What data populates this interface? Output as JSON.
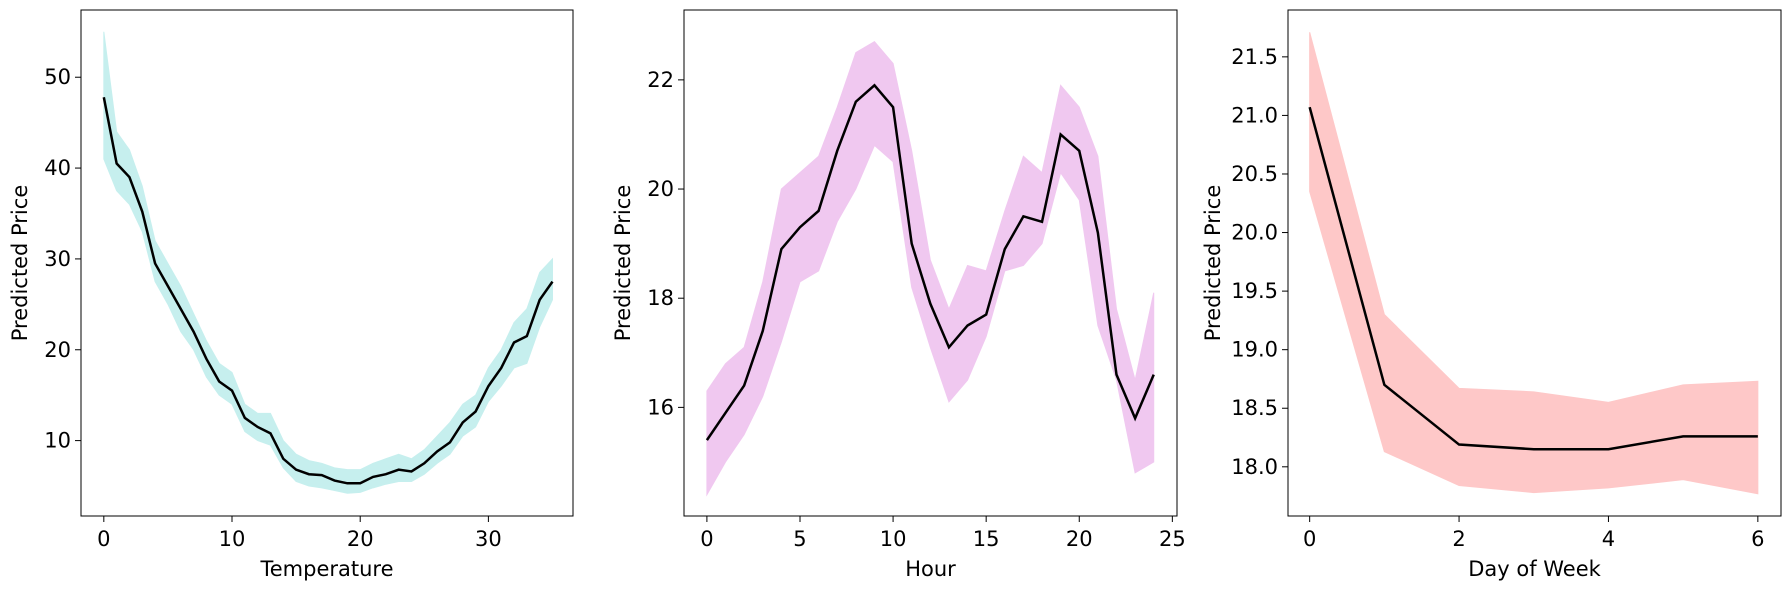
{
  "chart_data": [
    {
      "type": "line",
      "xlabel": "Temperature",
      "ylabel": "Predicted Price",
      "x": [
        0,
        1,
        2,
        3,
        4,
        5,
        6,
        7,
        8,
        9,
        10,
        11,
        12,
        13,
        14,
        15,
        16,
        17,
        18,
        19,
        20,
        21,
        22,
        23,
        24,
        25,
        26,
        27,
        28,
        29,
        30,
        31,
        32,
        33,
        34,
        35
      ],
      "series": [
        {
          "color": "#000000",
          "values": [
            47.8,
            40.5,
            39,
            35.2,
            29.5,
            27,
            24.5,
            22,
            19,
            16.5,
            15.5,
            12.5,
            11.5,
            10.8,
            8,
            6.8,
            6.3,
            6.2,
            5.6,
            5.3,
            5.3,
            6,
            6.3,
            6.8,
            6.6,
            7.5,
            8.8,
            9.8,
            12,
            13.2,
            16,
            18,
            20.8,
            21.5,
            25.5,
            27.5
          ]
        }
      ],
      "band": {
        "color": "#c6efee",
        "lower": [
          41,
          37.5,
          36,
          33,
          27.5,
          25,
          22,
          20,
          17,
          15,
          14,
          11,
          10,
          9.5,
          7,
          5.5,
          5,
          4.8,
          4.5,
          4.2,
          4.3,
          4.8,
          5.2,
          5.5,
          5.5,
          6.3,
          7.5,
          8.5,
          10.5,
          11.5,
          14.3,
          16,
          18,
          18.5,
          22.5,
          25.5
        ],
        "upper": [
          55,
          44,
          42,
          38,
          32,
          29.5,
          27,
          24,
          21,
          18.5,
          17.5,
          14,
          13,
          13,
          10,
          8.5,
          7.8,
          7.5,
          7,
          6.8,
          6.8,
          7.5,
          8,
          8.5,
          8,
          9,
          10.5,
          12,
          14,
          15,
          18,
          20,
          23,
          24.5,
          28.5,
          30
        ]
      },
      "xlim": [
        -1.78,
        36.6
      ],
      "ylim": [
        1.7,
        57.4
      ],
      "xticks": [
        0,
        10,
        20,
        30
      ],
      "yticks": [
        10,
        20,
        30,
        40,
        50
      ]
    },
    {
      "type": "line",
      "xlabel": "Hour",
      "ylabel": "Predicted Price",
      "x": [
        0,
        1,
        2,
        3,
        4,
        5,
        6,
        7,
        8,
        9,
        10,
        11,
        12,
        13,
        14,
        15,
        16,
        17,
        18,
        19,
        20,
        21,
        22,
        23,
        24
      ],
      "series": [
        {
          "color": "#000000",
          "values": [
            15.4,
            15.9,
            16.4,
            17.4,
            18.9,
            19.3,
            19.6,
            20.7,
            21.6,
            21.9,
            21.5,
            19,
            17.9,
            17.1,
            17.5,
            17.7,
            18.9,
            19.5,
            19.4,
            21,
            20.7,
            19.2,
            16.6,
            15.8,
            16.6
          ]
        }
      ],
      "band": {
        "color": "#f0c8f0",
        "lower": [
          14.4,
          15,
          15.5,
          16.2,
          17.2,
          18.3,
          18.5,
          19.4,
          20,
          20.8,
          20.5,
          18.2,
          17.1,
          16.1,
          16.5,
          17.3,
          18.5,
          18.6,
          19,
          20.3,
          19.8,
          17.5,
          16.5,
          14.8,
          15
        ],
        "upper": [
          16.3,
          16.8,
          17.1,
          18.3,
          20,
          20.3,
          20.6,
          21.5,
          22.5,
          22.7,
          22.3,
          20.7,
          18.7,
          17.8,
          18.6,
          18.5,
          19.6,
          20.6,
          20.3,
          21.9,
          21.5,
          20.6,
          17.8,
          16.5,
          18.1
        ]
      },
      "xlim": [
        -1.23,
        25.25
      ],
      "ylim": [
        14.01,
        23.28
      ],
      "xticks": [
        0,
        5,
        10,
        15,
        20,
        25
      ],
      "yticks": [
        16,
        18,
        20,
        22
      ]
    },
    {
      "type": "line",
      "xlabel": "Day of Week",
      "ylabel": "Predicted Price",
      "x": [
        0,
        1,
        2,
        3,
        4,
        5,
        6
      ],
      "series": [
        {
          "color": "#000000",
          "values": [
            21.07,
            18.7,
            18.19,
            18.15,
            18.15,
            18.26,
            18.26
          ]
        }
      ],
      "band": {
        "color": "#fec8c8",
        "lower": [
          20.35,
          18.13,
          17.84,
          17.78,
          17.82,
          17.89,
          17.77
        ],
        "upper": [
          21.71,
          19.3,
          18.67,
          18.64,
          18.55,
          18.7,
          18.73
        ]
      },
      "xlim": [
        -0.29,
        6.31
      ],
      "ylim": [
        17.58,
        21.9
      ],
      "xticks": [
        0,
        2,
        4,
        6
      ],
      "yticks": [
        {
          "value": 18,
          "label": "18.0"
        },
        18.5,
        {
          "value": 19,
          "label": "19.0"
        },
        19.5,
        {
          "value": 20,
          "label": "20.0"
        },
        20.5,
        {
          "value": 21,
          "label": "21.0"
        },
        21.5
      ]
    }
  ]
}
